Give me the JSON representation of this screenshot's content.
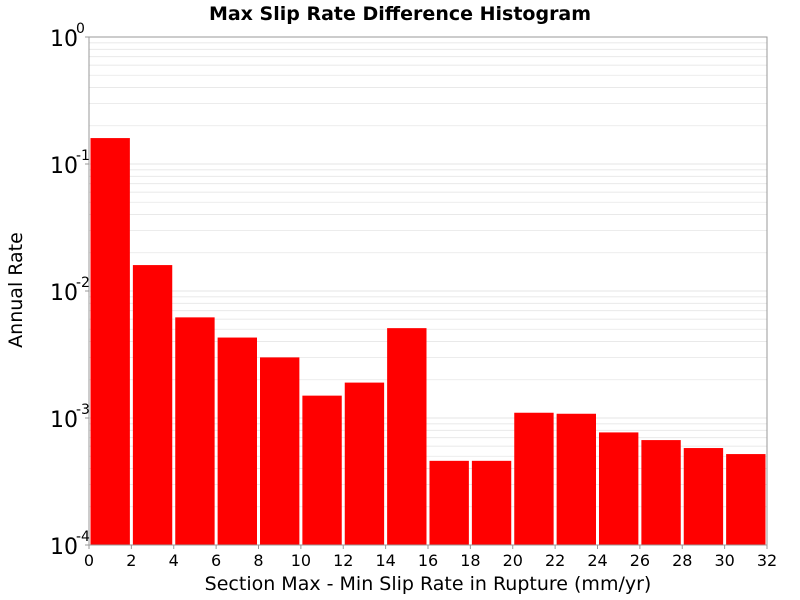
{
  "colors": {
    "bar": "#ff0000",
    "plot_background": "#ffffff",
    "grid": "#e6e6e6",
    "axis": "#999999"
  },
  "chart_data": {
    "type": "bar",
    "title": "Max Slip Rate Difference Histogram",
    "xlabel": "Section Max - Min Slip Rate in Rupture (mm/yr)",
    "ylabel": "Annual Rate",
    "y_scale": "log",
    "xlim": [
      0,
      32
    ],
    "ylim": [
      0.0001,
      1
    ],
    "grid": true,
    "x_ticks": [
      "0",
      "2",
      "4",
      "6",
      "8",
      "10",
      "12",
      "14",
      "16",
      "18",
      "20",
      "22",
      "24",
      "26",
      "28",
      "30",
      "32"
    ],
    "y_ticks": [
      {
        "base": "10",
        "exp": "0"
      },
      {
        "base": "10",
        "exp": "-1"
      },
      {
        "base": "10",
        "exp": "-2"
      },
      {
        "base": "10",
        "exp": "-3"
      },
      {
        "base": "10",
        "exp": "-4"
      }
    ],
    "bins": [
      {
        "x0": 0,
        "x1": 2,
        "value": 0.16
      },
      {
        "x0": 2,
        "x1": 4,
        "value": 0.016
      },
      {
        "x0": 4,
        "x1": 6,
        "value": 0.0062
      },
      {
        "x0": 6,
        "x1": 8,
        "value": 0.0043
      },
      {
        "x0": 8,
        "x1": 10,
        "value": 0.003
      },
      {
        "x0": 10,
        "x1": 12,
        "value": 0.0015
      },
      {
        "x0": 12,
        "x1": 14,
        "value": 0.0019
      },
      {
        "x0": 14,
        "x1": 16,
        "value": 0.0051
      },
      {
        "x0": 16,
        "x1": 18,
        "value": 0.00046
      },
      {
        "x0": 18,
        "x1": 20,
        "value": 0.00046
      },
      {
        "x0": 20,
        "x1": 22,
        "value": 0.0011
      },
      {
        "x0": 22,
        "x1": 24,
        "value": 0.00108
      },
      {
        "x0": 24,
        "x1": 26,
        "value": 0.00077
      },
      {
        "x0": 26,
        "x1": 28,
        "value": 0.00067
      },
      {
        "x0": 28,
        "x1": 30,
        "value": 0.00058
      },
      {
        "x0": 30,
        "x1": 32,
        "value": 0.00052
      }
    ]
  }
}
